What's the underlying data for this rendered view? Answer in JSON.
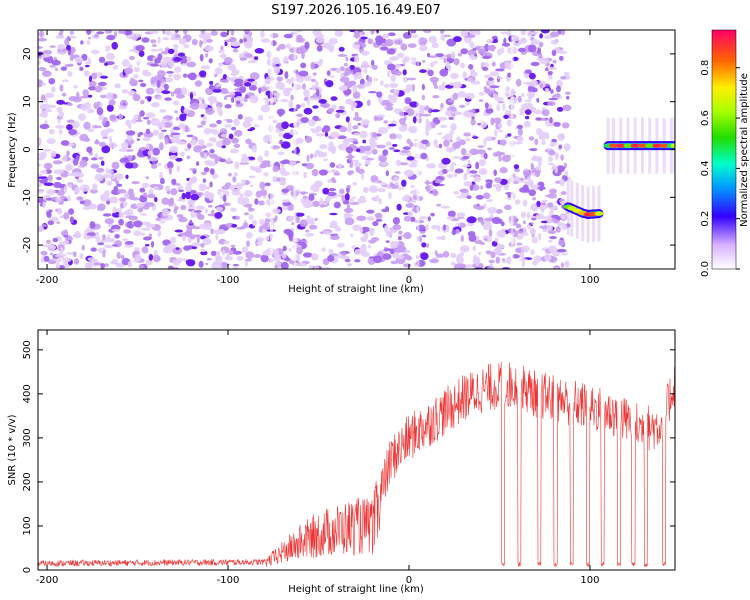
{
  "title": "S197.2026.105.16.49.E07",
  "chart_data": [
    {
      "type": "heatmap",
      "xlabel": "Height of straight line (km)",
      "ylabel": "Frequency (Hz)",
      "xlim": [
        -205,
        147
      ],
      "ylim": [
        -25,
        25
      ],
      "xticks": [
        -200,
        -100,
        0,
        100
      ],
      "yticks": [
        -20,
        -10,
        0,
        10,
        20
      ],
      "noise_region_x": [
        -205,
        88
      ],
      "tracks": [
        {
          "name": "segment-1",
          "x": [
            88,
            90,
            93,
            96,
            99,
            102,
            105
          ],
          "freq": [
            -12,
            -12.3,
            -12.8,
            -13.3,
            -13.6,
            -13.5,
            -13.4
          ],
          "amplitude": [
            0.6,
            0.7,
            0.75,
            0.8,
            0.95,
            0.9,
            0.7
          ]
        },
        {
          "name": "segment-2",
          "x": [
            110,
            113,
            117,
            121,
            125,
            129,
            133,
            137,
            141,
            145,
            147
          ],
          "freq": [
            0.8,
            0.8,
            0.8,
            0.8,
            0.8,
            0.8,
            0.8,
            0.8,
            0.8,
            0.8,
            0.8
          ],
          "amplitude": [
            0.5,
            0.9,
            0.95,
            0.6,
            0.95,
            0.9,
            0.6,
            0.95,
            0.9,
            0.5,
            0.7
          ]
        }
      ]
    },
    {
      "type": "line",
      "xlabel": "Height of straight line (km)",
      "ylabel": "SNR (10 * v/v)",
      "xlim": [
        -205,
        147
      ],
      "ylim": [
        0,
        545
      ],
      "xticks": [
        -200,
        -100,
        0,
        100
      ],
      "yticks": [
        0,
        100,
        200,
        300,
        400,
        500
      ],
      "color": "#ee3333",
      "envelope": {
        "x": [
          -205,
          -80,
          -75,
          -60,
          -50,
          -40,
          -30,
          -20,
          -15,
          -10,
          0,
          10,
          20,
          30,
          40,
          50,
          60,
          70,
          80,
          90,
          100,
          110,
          120,
          130,
          140,
          147
        ],
        "y": [
          15,
          18,
          30,
          70,
          90,
          100,
          110,
          110,
          180,
          250,
          300,
          330,
          360,
          390,
          410,
          420,
          420,
          400,
          390,
          380,
          370,
          360,
          340,
          320,
          330,
          430
        ]
      },
      "dropouts_x": [
        52,
        61,
        72,
        81,
        90,
        99,
        107,
        116,
        124,
        131,
        141
      ]
    }
  ],
  "colorbar": {
    "label": "Normalized spectral amplitude",
    "range": [
      0,
      0.95
    ],
    "ticks": [
      "0.0",
      "0.2",
      "0.4",
      "0.6",
      "0.8"
    ],
    "tick_values": [
      0,
      0.2,
      0.4,
      0.6,
      0.8
    ]
  }
}
